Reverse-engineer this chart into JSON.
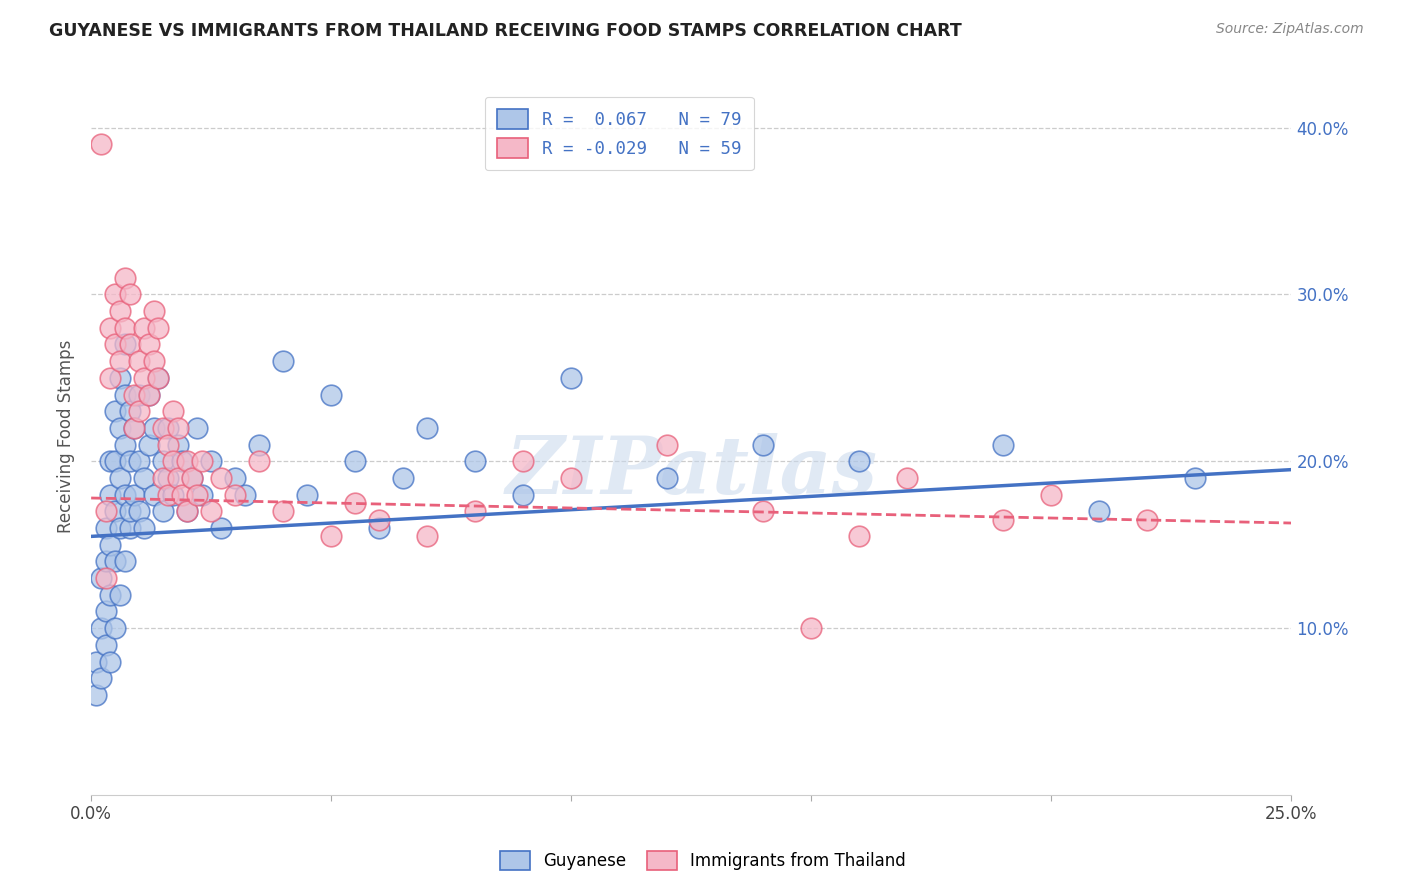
{
  "title": "GUYANESE VS IMMIGRANTS FROM THAILAND RECEIVING FOOD STAMPS CORRELATION CHART",
  "source": "Source: ZipAtlas.com",
  "ylabel": "Receiving Food Stamps",
  "color_blue": "#aec6e8",
  "color_pink": "#f5b8c8",
  "line_blue": "#4472c4",
  "line_pink": "#e8607a",
  "watermark": "ZIPatlas",
  "xmin": 0.0,
  "xmax": 0.25,
  "ymin": 0.0,
  "ymax": 0.43,
  "blue_scatter": [
    [
      0.001,
      0.06
    ],
    [
      0.001,
      0.08
    ],
    [
      0.002,
      0.07
    ],
    [
      0.002,
      0.1
    ],
    [
      0.002,
      0.13
    ],
    [
      0.003,
      0.09
    ],
    [
      0.003,
      0.11
    ],
    [
      0.003,
      0.14
    ],
    [
      0.003,
      0.16
    ],
    [
      0.004,
      0.08
    ],
    [
      0.004,
      0.12
    ],
    [
      0.004,
      0.15
    ],
    [
      0.004,
      0.18
    ],
    [
      0.004,
      0.2
    ],
    [
      0.005,
      0.1
    ],
    [
      0.005,
      0.14
    ],
    [
      0.005,
      0.17
    ],
    [
      0.005,
      0.2
    ],
    [
      0.005,
      0.23
    ],
    [
      0.006,
      0.12
    ],
    [
      0.006,
      0.16
    ],
    [
      0.006,
      0.19
    ],
    [
      0.006,
      0.22
    ],
    [
      0.006,
      0.25
    ],
    [
      0.007,
      0.14
    ],
    [
      0.007,
      0.18
    ],
    [
      0.007,
      0.21
    ],
    [
      0.007,
      0.24
    ],
    [
      0.007,
      0.27
    ],
    [
      0.008,
      0.16
    ],
    [
      0.008,
      0.2
    ],
    [
      0.008,
      0.23
    ],
    [
      0.008,
      0.17
    ],
    [
      0.009,
      0.18
    ],
    [
      0.009,
      0.22
    ],
    [
      0.01,
      0.2
    ],
    [
      0.01,
      0.24
    ],
    [
      0.01,
      0.17
    ],
    [
      0.011,
      0.19
    ],
    [
      0.011,
      0.16
    ],
    [
      0.012,
      0.21
    ],
    [
      0.012,
      0.24
    ],
    [
      0.013,
      0.18
    ],
    [
      0.013,
      0.22
    ],
    [
      0.014,
      0.25
    ],
    [
      0.015,
      0.17
    ],
    [
      0.015,
      0.2
    ],
    [
      0.016,
      0.19
    ],
    [
      0.016,
      0.22
    ],
    [
      0.017,
      0.18
    ],
    [
      0.018,
      0.21
    ],
    [
      0.019,
      0.2
    ],
    [
      0.02,
      0.17
    ],
    [
      0.021,
      0.19
    ],
    [
      0.022,
      0.22
    ],
    [
      0.023,
      0.18
    ],
    [
      0.025,
      0.2
    ],
    [
      0.027,
      0.16
    ],
    [
      0.03,
      0.19
    ],
    [
      0.032,
      0.18
    ],
    [
      0.035,
      0.21
    ],
    [
      0.04,
      0.26
    ],
    [
      0.045,
      0.18
    ],
    [
      0.05,
      0.24
    ],
    [
      0.055,
      0.2
    ],
    [
      0.06,
      0.16
    ],
    [
      0.065,
      0.19
    ],
    [
      0.07,
      0.22
    ],
    [
      0.08,
      0.2
    ],
    [
      0.09,
      0.18
    ],
    [
      0.1,
      0.25
    ],
    [
      0.12,
      0.19
    ],
    [
      0.14,
      0.21
    ],
    [
      0.16,
      0.2
    ],
    [
      0.19,
      0.21
    ],
    [
      0.21,
      0.17
    ],
    [
      0.23,
      0.19
    ]
  ],
  "pink_scatter": [
    [
      0.002,
      0.39
    ],
    [
      0.003,
      0.13
    ],
    [
      0.003,
      0.17
    ],
    [
      0.004,
      0.25
    ],
    [
      0.004,
      0.28
    ],
    [
      0.005,
      0.27
    ],
    [
      0.005,
      0.3
    ],
    [
      0.006,
      0.26
    ],
    [
      0.006,
      0.29
    ],
    [
      0.007,
      0.28
    ],
    [
      0.007,
      0.31
    ],
    [
      0.008,
      0.27
    ],
    [
      0.008,
      0.3
    ],
    [
      0.009,
      0.24
    ],
    [
      0.009,
      0.22
    ],
    [
      0.01,
      0.26
    ],
    [
      0.01,
      0.23
    ],
    [
      0.011,
      0.28
    ],
    [
      0.011,
      0.25
    ],
    [
      0.012,
      0.27
    ],
    [
      0.012,
      0.24
    ],
    [
      0.013,
      0.29
    ],
    [
      0.013,
      0.26
    ],
    [
      0.014,
      0.28
    ],
    [
      0.014,
      0.25
    ],
    [
      0.015,
      0.22
    ],
    [
      0.015,
      0.19
    ],
    [
      0.016,
      0.21
    ],
    [
      0.016,
      0.18
    ],
    [
      0.017,
      0.2
    ],
    [
      0.017,
      0.23
    ],
    [
      0.018,
      0.19
    ],
    [
      0.018,
      0.22
    ],
    [
      0.019,
      0.18
    ],
    [
      0.02,
      0.2
    ],
    [
      0.02,
      0.17
    ],
    [
      0.021,
      0.19
    ],
    [
      0.022,
      0.18
    ],
    [
      0.023,
      0.2
    ],
    [
      0.025,
      0.17
    ],
    [
      0.027,
      0.19
    ],
    [
      0.03,
      0.18
    ],
    [
      0.035,
      0.2
    ],
    [
      0.04,
      0.17
    ],
    [
      0.05,
      0.155
    ],
    [
      0.055,
      0.175
    ],
    [
      0.06,
      0.165
    ],
    [
      0.07,
      0.155
    ],
    [
      0.08,
      0.17
    ],
    [
      0.09,
      0.2
    ],
    [
      0.1,
      0.19
    ],
    [
      0.12,
      0.21
    ],
    [
      0.14,
      0.17
    ],
    [
      0.15,
      0.1
    ],
    [
      0.16,
      0.155
    ],
    [
      0.17,
      0.19
    ],
    [
      0.19,
      0.165
    ],
    [
      0.2,
      0.18
    ],
    [
      0.22,
      0.165
    ]
  ],
  "blue_line": {
    "x0": 0.0,
    "y0": 0.155,
    "x1": 0.25,
    "y1": 0.195
  },
  "pink_line": {
    "x0": 0.0,
    "y0": 0.178,
    "x1": 0.25,
    "y1": 0.163
  },
  "xtick_minor": [
    0.05,
    0.1,
    0.15,
    0.2
  ],
  "ytick_values": [
    0.1,
    0.2,
    0.3,
    0.4
  ]
}
